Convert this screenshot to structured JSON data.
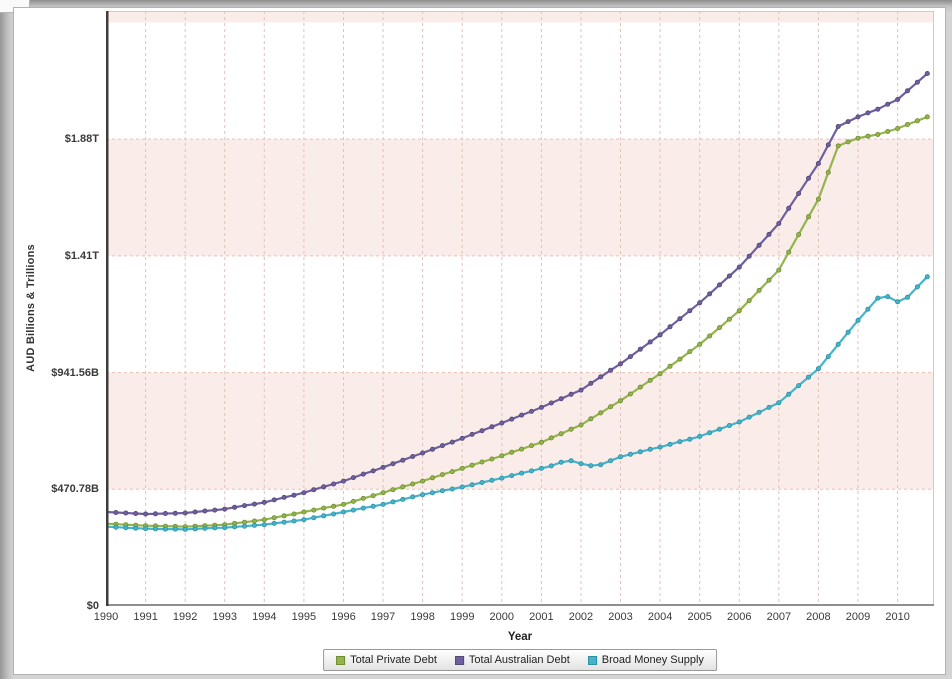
{
  "y_axis": {
    "title": "AUD Billions & Trillions",
    "ticks": [
      {
        "value": 0,
        "label": "$0"
      },
      {
        "value": 470.78,
        "label": "$470.78B"
      },
      {
        "value": 941.56,
        "label": "$941.56B"
      },
      {
        "value": 1412.34,
        "label": "$1.41T"
      },
      {
        "value": 1883.12,
        "label": "$1.88T"
      }
    ]
  },
  "x_axis": {
    "title": "Year",
    "ticks": [
      1990,
      1991,
      1992,
      1993,
      1994,
      1995,
      1996,
      1997,
      1998,
      1999,
      2000,
      2001,
      2002,
      2003,
      2004,
      2005,
      2006,
      2007,
      2008,
      2009,
      2010
    ]
  },
  "legend_position": "bottom",
  "chart_data": {
    "type": "line",
    "title": "",
    "xlabel": "Year",
    "ylabel": "AUD Billions & Trillions",
    "units": "AUD billions",
    "xlim": [
      1990,
      2010.92
    ],
    "ylim": [
      0,
      2400
    ],
    "grid": "dashed",
    "pink_bands": [
      [
        470.78,
        941.56
      ],
      [
        1412.34,
        1883.12
      ],
      [
        2353.9,
        2400
      ]
    ],
    "x": [
      1990,
      1990.25,
      1990.5,
      1990.75,
      1991,
      1991.25,
      1991.5,
      1991.75,
      1992,
      1992.25,
      1992.5,
      1992.75,
      1993,
      1993.25,
      1993.5,
      1993.75,
      1994,
      1994.25,
      1994.5,
      1994.75,
      1995,
      1995.25,
      1995.5,
      1995.75,
      1996,
      1996.25,
      1996.5,
      1996.75,
      1997,
      1997.25,
      1997.5,
      1997.75,
      1998,
      1998.25,
      1998.5,
      1998.75,
      1999,
      1999.25,
      1999.5,
      1999.75,
      2000,
      2000.25,
      2000.5,
      2000.75,
      2001,
      2001.25,
      2001.5,
      2001.75,
      2002,
      2002.25,
      2002.5,
      2002.75,
      2003,
      2003.25,
      2003.5,
      2003.75,
      2004,
      2004.25,
      2004.5,
      2004.75,
      2005,
      2005.25,
      2005.5,
      2005.75,
      2006,
      2006.25,
      2006.5,
      2006.75,
      2007,
      2007.25,
      2007.5,
      2007.75,
      2008,
      2008.25,
      2008.5,
      2008.75,
      2009,
      2009.25,
      2009.5,
      2009.75,
      2010,
      2010.25,
      2010.5,
      2010.75
    ],
    "series": [
      {
        "name": "Total Private Debt",
        "color": "#94B44C",
        "marker_stroke": "#6E8C33",
        "values": [
          332,
          330,
          328,
          326,
          324,
          323,
          322,
          321,
          320,
          322,
          324,
          326,
          328,
          333,
          338,
          343,
          348,
          356,
          364,
          371,
          379,
          387,
          395,
          402,
          410,
          422,
          434,
          445,
          457,
          469,
          481,
          492,
          504,
          517,
          530,
          542,
          555,
          568,
          581,
          593,
          606,
          620,
          633,
          647,
          660,
          678,
          695,
          713,
          730,
          755,
          779,
          804,
          828,
          855,
          883,
          910,
          937,
          967,
          996,
          1026,
          1055,
          1089,
          1123,
          1157,
          1191,
          1232,
          1273,
          1314,
          1355,
          1427,
          1498,
          1570,
          1641,
          1749,
          1856,
          1872,
          1887,
          1895,
          1902,
          1914,
          1926,
          1942,
          1957,
          1973
        ]
      },
      {
        "name": "Total Australian Debt",
        "color": "#6F5F9F",
        "marker_stroke": "#524776",
        "values": [
          379,
          377,
          375,
          373,
          371,
          372,
          373,
          374,
          375,
          379,
          383,
          387,
          391,
          398,
          405,
          411,
          418,
          428,
          438,
          447,
          457,
          469,
          481,
          492,
          504,
          518,
          532,
          545,
          559,
          574,
          588,
          603,
          617,
          632,
          647,
          661,
          676,
          692,
          707,
          723,
          738,
          754,
          770,
          785,
          801,
          819,
          836,
          854,
          871,
          898,
          924,
          951,
          977,
          1006,
          1036,
          1065,
          1094,
          1126,
          1159,
          1191,
          1223,
          1259,
          1295,
          1331,
          1367,
          1411,
          1455,
          1499,
          1543,
          1604,
          1664,
          1725,
          1785,
          1860,
          1934,
          1954,
          1973,
          1989,
          2004,
          2024,
          2043,
          2078,
          2113,
          2148
        ]
      },
      {
        "name": "Broad Money Supply",
        "color": "#45B4CB",
        "marker_stroke": "#2E8FA3",
        "values": [
          320,
          318,
          316,
          314,
          312,
          311,
          310,
          310,
          309,
          311,
          313,
          315,
          316,
          319,
          322,
          325,
          328,
          333,
          338,
          343,
          348,
          356,
          364,
          371,
          379,
          387,
          395,
          402,
          410,
          420,
          430,
          440,
          449,
          457,
          465,
          472,
          480,
          489,
          498,
          507,
          516,
          526,
          536,
          545,
          555,
          565,
          580,
          586,
          574,
          566,
          570,
          586,
          602,
          612,
          622,
          632,
          641,
          652,
          663,
          673,
          684,
          699,
          713,
          728,
          742,
          762,
          781,
          801,
          820,
          854,
          889,
          923,
          957,
          1006,
          1055,
          1104,
          1152,
          1197,
          1242,
          1248,
          1227,
          1245,
          1287,
          1328
        ]
      }
    ]
  }
}
